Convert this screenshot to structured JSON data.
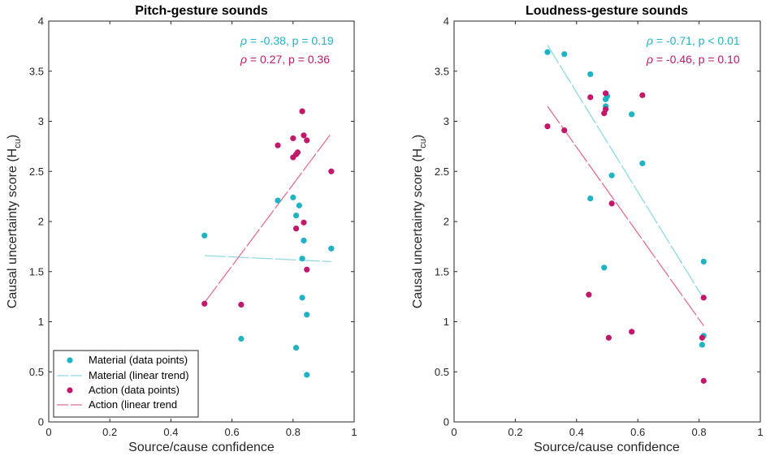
{
  "colors": {
    "material": "#1fb3c4",
    "material_trend": "#8fd8e6",
    "action": "#c2176b",
    "action_trend": "#e06e98",
    "axis": "#262626"
  },
  "legend": {
    "entries": [
      {
        "label": "Material (data points)",
        "series": "material",
        "kind": "marker"
      },
      {
        "label": "Material (linear trend)",
        "series": "material_trend",
        "kind": "line"
      },
      {
        "label": "Action (data points)",
        "series": "action",
        "kind": "marker"
      },
      {
        "label": "Action (linear trend",
        "series": "action_trend",
        "kind": "line"
      }
    ]
  },
  "chart_data": [
    {
      "type": "scatter",
      "title": "Pitch-gesture sounds",
      "xlabel": "Source/cause confidence",
      "ylabel_main": "Causal uncertainty score (H",
      "ylabel_sub": "cu",
      "ylabel_close": ")",
      "xlim": [
        0,
        1
      ],
      "ylim": [
        0,
        4
      ],
      "xticks": [
        "0",
        "0.2",
        "0.4",
        "0.6",
        "0.8",
        "1"
      ],
      "yticks": [
        "0",
        "0.5",
        "1",
        "1.5",
        "2",
        "2.5",
        "3",
        "3.5",
        "4"
      ],
      "stats": {
        "material": {
          "rho_symbol": "ρ",
          "text": " = -0.38, p = 0.19"
        },
        "action": {
          "rho_symbol": "ρ",
          "text": " = 0.27, p = 0.36"
        }
      },
      "series": [
        {
          "name": "material",
          "points": [
            [
              0.51,
              1.86
            ],
            [
              0.63,
              0.83
            ],
            [
              0.75,
              2.21
            ],
            [
              0.8,
              2.24
            ],
            [
              0.81,
              2.06
            ],
            [
              0.81,
              0.74
            ],
            [
              0.82,
              2.16
            ],
            [
              0.83,
              1.63
            ],
            [
              0.83,
              1.24
            ],
            [
              0.835,
              1.81
            ],
            [
              0.845,
              1.07
            ],
            [
              0.845,
              0.47
            ],
            [
              0.925,
              1.73
            ]
          ],
          "trend": [
            [
              0.51,
              1.66
            ],
            [
              0.925,
              1.6
            ]
          ]
        },
        {
          "name": "action",
          "points": [
            [
              0.51,
              1.18
            ],
            [
              0.63,
              1.17
            ],
            [
              0.75,
              2.76
            ],
            [
              0.8,
              2.64
            ],
            [
              0.8,
              2.83
            ],
            [
              0.81,
              2.67
            ],
            [
              0.815,
              2.69
            ],
            [
              0.81,
              1.93
            ],
            [
              0.83,
              3.1
            ],
            [
              0.835,
              2.86
            ],
            [
              0.835,
              1.99
            ],
            [
              0.845,
              2.81
            ],
            [
              0.845,
              1.52
            ],
            [
              0.925,
              2.5
            ]
          ],
          "trend": [
            [
              0.51,
              1.19
            ],
            [
              0.925,
              2.88
            ]
          ]
        }
      ]
    },
    {
      "type": "scatter",
      "title": "Loudness-gesture sounds",
      "xlabel": "Source/cause confidence",
      "ylabel_main": "Causal uncertainty score (H",
      "ylabel_sub": "cu",
      "ylabel_close": ")",
      "xlim": [
        0,
        1
      ],
      "ylim": [
        0,
        4
      ],
      "xticks": [
        "0",
        "0.2",
        "0.4",
        "0.6",
        "0.8",
        "1"
      ],
      "yticks": [
        "0",
        "0.5",
        "1",
        "1.5",
        "2",
        "2.5",
        "3",
        "3.5",
        "4"
      ],
      "stats": {
        "material": {
          "rho_symbol": "ρ",
          "text": " = -0.71, p < 0.01"
        },
        "action": {
          "rho_symbol": "ρ",
          "text": " = -0.46, p = 0.10"
        }
      },
      "series": [
        {
          "name": "material",
          "points": [
            [
              0.305,
              3.69
            ],
            [
              0.36,
              3.67
            ],
            [
              0.445,
              3.47
            ],
            [
              0.445,
              2.23
            ],
            [
              0.495,
              3.22
            ],
            [
              0.495,
              3.15
            ],
            [
              0.5,
              3.25
            ],
            [
              0.515,
              2.46
            ],
            [
              0.58,
              3.07
            ],
            [
              0.615,
              2.58
            ],
            [
              0.49,
              1.54
            ],
            [
              0.815,
              1.6
            ],
            [
              0.815,
              0.86
            ],
            [
              0.81,
              0.77
            ]
          ],
          "trend": [
            [
              0.305,
              3.76
            ],
            [
              0.815,
              1.23
            ]
          ]
        },
        {
          "name": "action",
          "points": [
            [
              0.305,
              2.95
            ],
            [
              0.36,
              2.91
            ],
            [
              0.445,
              3.24
            ],
            [
              0.49,
              3.08
            ],
            [
              0.495,
              3.12
            ],
            [
              0.495,
              3.28
            ],
            [
              0.515,
              2.18
            ],
            [
              0.615,
              3.26
            ],
            [
              0.44,
              1.27
            ],
            [
              0.505,
              0.84
            ],
            [
              0.58,
              0.9
            ],
            [
              0.815,
              1.24
            ],
            [
              0.81,
              0.84
            ],
            [
              0.815,
              0.41
            ]
          ],
          "trend": [
            [
              0.305,
              3.15
            ],
            [
              0.815,
              0.96
            ]
          ]
        }
      ]
    }
  ]
}
